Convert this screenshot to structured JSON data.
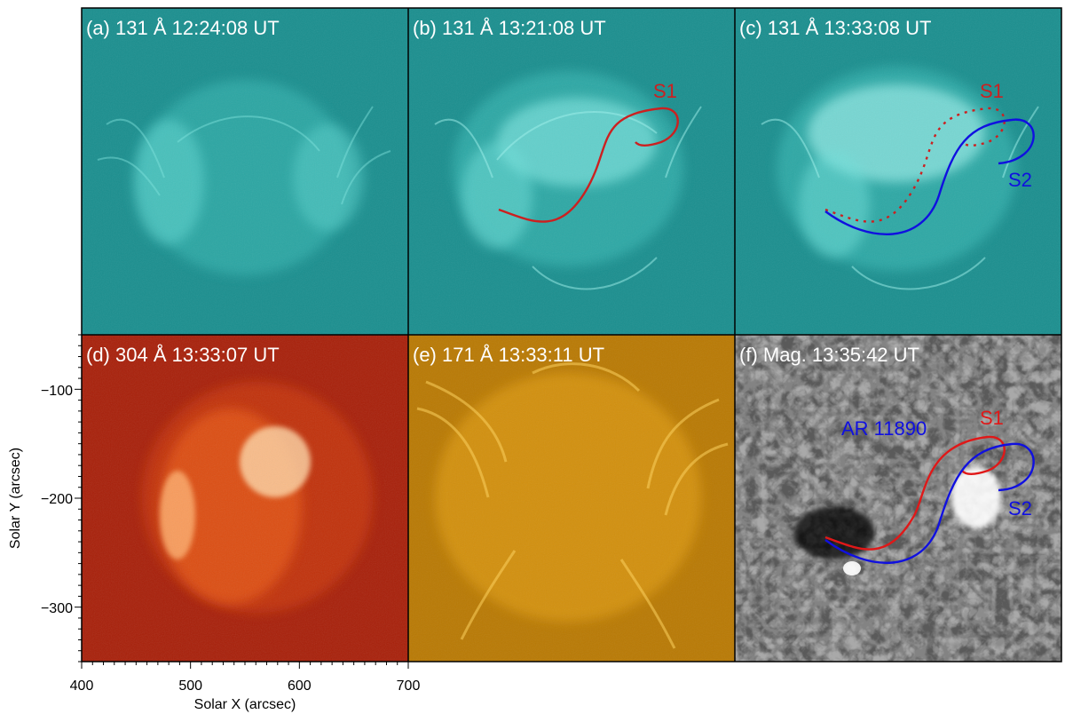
{
  "panels": [
    {
      "id": "a",
      "title": "(a) 131 Å 12:24:08 UT",
      "channel": "131"
    },
    {
      "id": "b",
      "title": "(b) 131 Å 13:21:08 UT",
      "channel": "131"
    },
    {
      "id": "c",
      "title": "(c) 131 Å 13:33:08 UT",
      "channel": "131"
    },
    {
      "id": "d",
      "title": "(d) 304 Å 13:33:07 UT",
      "channel": "304"
    },
    {
      "id": "e",
      "title": "(e) 171 Å 13:33:11 UT",
      "channel": "171"
    },
    {
      "id": "f",
      "title": "(f) Mag. 13:35:42 UT",
      "channel": "mag"
    }
  ],
  "annotations": {
    "s1_label": "S1",
    "s2_label": "S2",
    "ar_label": "AR 11890",
    "s1_color": "#cc2020",
    "s2_color": "#1010e0"
  },
  "axes": {
    "x_label": "Solar X (arcsec)",
    "y_label": "Solar Y (arcsec)",
    "x_ticks": [
      "400",
      "500",
      "600",
      "700"
    ],
    "y_ticks": [
      "−100",
      "−200",
      "−300"
    ]
  },
  "colors": {
    "ch131": "#1fa3a3",
    "ch304": "#b82a08",
    "ch171": "#d99a10",
    "mag": "#8c8c8c"
  }
}
